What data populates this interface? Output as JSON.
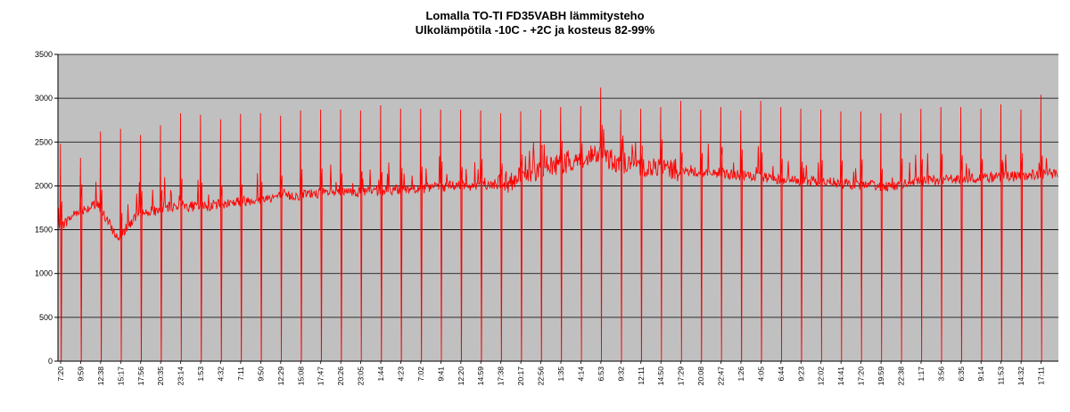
{
  "chart_data": {
    "type": "line",
    "title": "Lomalla TO-TI FD35VABH lämmitysteho",
    "subtitle": "Ulkolämpötila  -10C - +2C ja kosteus 82-99%",
    "xlabel": "",
    "ylabel": "",
    "ylim": [
      0,
      3500
    ],
    "yticks": [
      0,
      500,
      1000,
      1500,
      2000,
      2500,
      3000,
      3500
    ],
    "grid": true,
    "legend": "none",
    "plot_background": "#c0c0c0",
    "line_color": "#ff0000",
    "categories": [
      "7:20",
      "9:59",
      "12:38",
      "15:17",
      "17:56",
      "20:35",
      "23:14",
      "1:53",
      "4:32",
      "7:11",
      "9:50",
      "12:29",
      "15:08",
      "17:47",
      "20:26",
      "23:05",
      "1:44",
      "4:23",
      "7:02",
      "9:41",
      "12:20",
      "14:59",
      "17:38",
      "20:17",
      "22:56",
      "1:35",
      "4:14",
      "6:53",
      "9:32",
      "12:11",
      "14:50",
      "17:29",
      "20:08",
      "22:47",
      "1:26",
      "4:05",
      "6:44",
      "9:23",
      "12:02",
      "14:41",
      "17:20",
      "19:59",
      "22:38",
      "1:17",
      "3:56",
      "6:35",
      "9:14",
      "11:53",
      "14:32",
      "17:11"
    ],
    "baseline": [
      1500,
      1720,
      1780,
      1400,
      1680,
      1720,
      1780,
      1760,
      1790,
      1820,
      1850,
      1880,
      1890,
      1920,
      1920,
      1930,
      1940,
      1960,
      1970,
      1990,
      2000,
      2000,
      2020,
      2080,
      2200,
      2250,
      2300,
      2350,
      2280,
      2230,
      2200,
      2180,
      2160,
      2150,
      2120,
      2100,
      2080,
      2060,
      2050,
      2030,
      2010,
      2000,
      2000,
      2050,
      2070,
      2080,
      2090,
      2100,
      2110,
      2130
    ],
    "spike_peaks": [
      2480,
      2320,
      2620,
      2650,
      2580,
      2690,
      2830,
      2810,
      2760,
      2820,
      2830,
      2800,
      2860,
      2870,
      2870,
      2860,
      2920,
      2880,
      2880,
      2870,
      2870,
      2860,
      2830,
      2850,
      2870,
      2900,
      2910,
      3120,
      2870,
      2880,
      2900,
      2970,
      2870,
      2900,
      2860,
      2970,
      2900,
      2880,
      2870,
      2850,
      2850,
      2830,
      2830,
      2880,
      2900,
      2900,
      2880,
      2930,
      2870,
      3040
    ]
  }
}
